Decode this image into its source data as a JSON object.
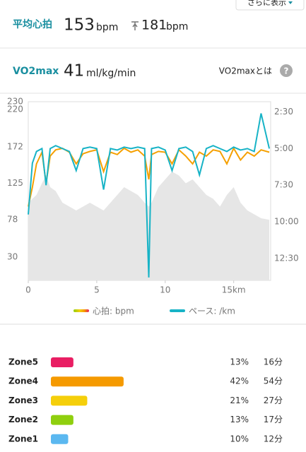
{
  "header": {
    "more_button": "さらに表示"
  },
  "heart_rate": {
    "label": "平均心拍",
    "average": 153,
    "average_unit": "bpm",
    "max": 181,
    "max_unit": "bpm"
  },
  "vo2max": {
    "label": "VO2max",
    "value": 41,
    "unit": "ml/kg/min",
    "link": "VO2maxとは",
    "help_icon": "?"
  },
  "chart_data": {
    "type": "line",
    "x": [
      0,
      0.3,
      0.6,
      1,
      1.3,
      1.6,
      2,
      2.5,
      3,
      3.5,
      4,
      4.5,
      5,
      5.5,
      6,
      6.5,
      7,
      7.5,
      8,
      8.5,
      8.8,
      9,
      9.5,
      10,
      10.5,
      11,
      11.5,
      12,
      12.5,
      13,
      13.5,
      14,
      14.5,
      15,
      15.5,
      16,
      16.5,
      17,
      17.6
    ],
    "series": [
      {
        "name": "心拍: bpm",
        "color": "#f5a000",
        "values": [
          95,
          120,
          150,
          165,
          125,
          160,
          168,
          170,
          165,
          150,
          163,
          166,
          168,
          140,
          165,
          162,
          170,
          165,
          168,
          160,
          130,
          162,
          166,
          165,
          150,
          168,
          160,
          150,
          165,
          160,
          168,
          166,
          150,
          170,
          155,
          165,
          160,
          168,
          165
        ]
      },
      {
        "name": "ペース: /km",
        "color": "#17b3c6",
        "axis": "y2",
        "values": [
          9.5,
          6,
          5.2,
          5,
          7.5,
          5,
          4.8,
          5,
          5.2,
          6.5,
          5,
          4.9,
          5,
          7.8,
          5,
          5.1,
          4.9,
          5,
          4.9,
          5,
          13.8,
          5,
          4.9,
          5.1,
          6.5,
          5,
          4.9,
          5.2,
          6.8,
          5,
          4.8,
          5,
          5.2,
          4.9,
          5.1,
          5,
          5.2,
          2.6,
          5
        ]
      }
    ],
    "background_area": {
      "color": "#e6e6e6",
      "values": [
        100,
        105,
        110,
        125,
        135,
        120,
        115,
        100,
        95,
        90,
        95,
        100,
        95,
        90,
        100,
        110,
        120,
        115,
        110,
        100,
        95,
        100,
        120,
        130,
        140,
        135,
        125,
        130,
        120,
        110,
        105,
        95,
        110,
        120,
        100,
        90,
        85,
        80,
        78
      ]
    },
    "xlim": [
      0,
      17.7
    ],
    "xticks": [
      0,
      5,
      10,
      {
        "value": 15,
        "label": "15km"
      }
    ],
    "ylim": [
      0,
      230
    ],
    "yticks": [
      30,
      78,
      125,
      172,
      220,
      230
    ],
    "y2lim": [
      14,
      1.8
    ],
    "y2ticks": [
      {
        "value": 2.5,
        "label": "2:30"
      },
      {
        "value": 5,
        "label": "5:00"
      },
      {
        "value": 7.5,
        "label": "7:30"
      },
      {
        "value": 10,
        "label": "10:00"
      },
      {
        "value": 12.5,
        "label": "12:30"
      }
    ],
    "grid": false
  },
  "zones": {
    "rows": [
      {
        "name": "Zone5",
        "color": "#e91e63",
        "percent": 13,
        "percent_label": "13%",
        "time": "16分"
      },
      {
        "name": "Zone4",
        "color": "#f59a00",
        "percent": 42,
        "percent_label": "42%",
        "time": "54分"
      },
      {
        "name": "Zone3",
        "color": "#f5cf0a",
        "percent": 21,
        "percent_label": "21%",
        "time": "27分"
      },
      {
        "name": "Zone2",
        "color": "#8fcf0e",
        "percent": 13,
        "percent_label": "13%",
        "time": "17分"
      },
      {
        "name": "Zone1",
        "color": "#5bb8f0",
        "percent": 10,
        "percent_label": "10%",
        "time": "12分"
      }
    ]
  }
}
